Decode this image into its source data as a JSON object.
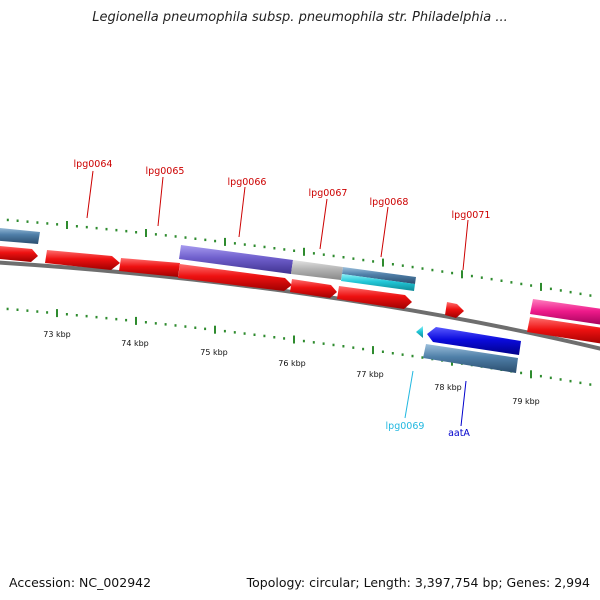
{
  "title": "Legionella pneumophila subsp. pneumophila str. Philadelphia ...",
  "footer": {
    "accession": "Accession: NC_002942",
    "summary": "Topology: circular; Length: 3,397,754 bp; Genes: 2,994"
  },
  "colors": {
    "backbone": "#7a7a7a",
    "tick": "#2e8b2e",
    "label_red": "#cc0000",
    "label_cyan": "#22b8e0",
    "label_blue": "#0000cc",
    "gene_red": "#ee1111",
    "gene_blue": "#0b0bdd",
    "gene_steel": "#4f7fa8",
    "gene_purple": "#6f5fcc",
    "gene_gray": "#b4b4b4",
    "gene_cyan": "#22c8d8",
    "gene_magenta": "#ee1a8a"
  },
  "scale": {
    "unit": "kbp",
    "labels": [
      "73 kbp",
      "74 kbp",
      "75 kbp",
      "76 kbp",
      "77 kbp",
      "78 kbp",
      "79 kbp"
    ]
  },
  "gene_labels": [
    {
      "id": "lpg0064",
      "text": "lpg0064",
      "color": "#cc0000"
    },
    {
      "id": "lpg0065",
      "text": "lpg0065",
      "color": "#cc0000"
    },
    {
      "id": "lpg0066",
      "text": "lpg0066",
      "color": "#cc0000"
    },
    {
      "id": "lpg0067",
      "text": "lpg0067",
      "color": "#cc0000"
    },
    {
      "id": "lpg0068",
      "text": "lpg0068",
      "color": "#cc0000"
    },
    {
      "id": "lpg0071",
      "text": "lpg0071",
      "color": "#cc0000"
    },
    {
      "id": "lpg0069",
      "text": "lpg0069",
      "color": "#22b8e0"
    },
    {
      "id": "aata",
      "text": "aatA",
      "color": "#0000cc"
    }
  ]
}
